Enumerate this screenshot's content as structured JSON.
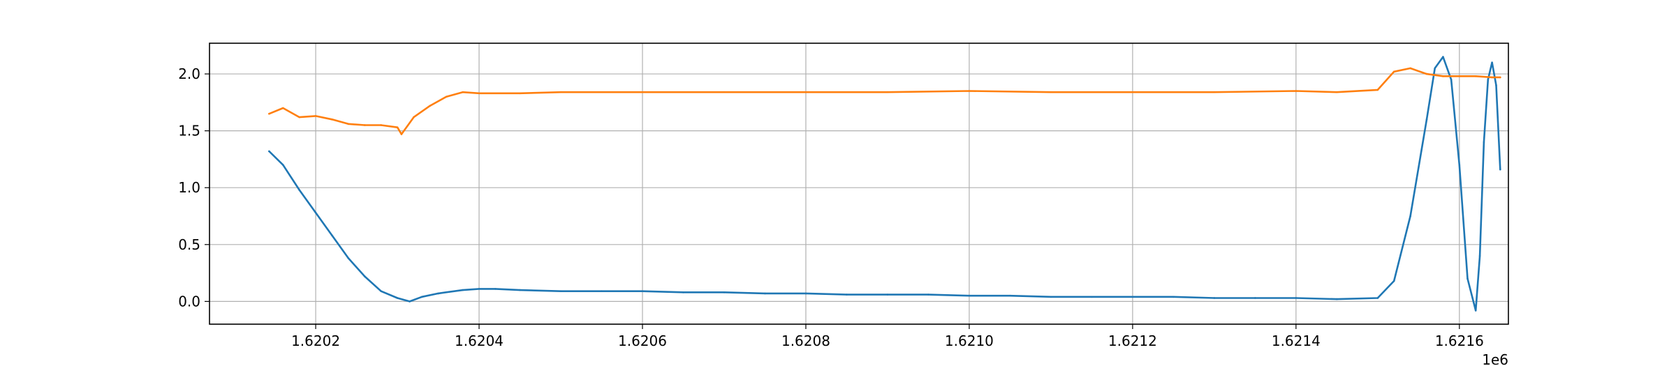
{
  "chart_data": {
    "type": "line",
    "title": "",
    "xlabel": "",
    "ylabel": "",
    "x_offset_label": "1e6",
    "xlim": [
      1.62007,
      1.62166
    ],
    "ylim": [
      -0.2,
      2.27
    ],
    "grid": true,
    "legend": "none",
    "x_ticks": [
      1.6202,
      1.6204,
      1.6206,
      1.6208,
      1.621,
      1.6212,
      1.6214,
      1.6216
    ],
    "x_tick_labels": [
      "1.6202",
      "1.6204",
      "1.6206",
      "1.6208",
      "1.6210",
      "1.6212",
      "1.6214",
      "1.6216"
    ],
    "y_ticks": [
      0.0,
      0.5,
      1.0,
      1.5,
      2.0
    ],
    "y_tick_labels": [
      "0.0",
      "0.5",
      "1.0",
      "1.5",
      "2.0"
    ],
    "series": [
      {
        "color": "#1f77b4",
        "x": [
          1.620143,
          1.62016,
          1.62018,
          1.6202,
          1.62022,
          1.62024,
          1.62026,
          1.62028,
          1.6203,
          1.620315,
          1.62033,
          1.62035,
          1.62038,
          1.6204,
          1.62042,
          1.62045,
          1.6205,
          1.62055,
          1.6206,
          1.62065,
          1.6207,
          1.62075,
          1.6208,
          1.62085,
          1.6209,
          1.62095,
          1.621,
          1.62105,
          1.6211,
          1.62115,
          1.6212,
          1.62125,
          1.6213,
          1.62135,
          1.6214,
          1.62145,
          1.6215,
          1.62152,
          1.62154,
          1.62156,
          1.62157,
          1.62158,
          1.62159,
          1.6216,
          1.62161,
          1.62162,
          1.621625,
          1.62163,
          1.621635,
          1.62164,
          1.621645,
          1.62165
        ],
        "y": [
          1.32,
          1.2,
          0.98,
          0.78,
          0.58,
          0.38,
          0.22,
          0.09,
          0.03,
          0.0,
          0.04,
          0.07,
          0.1,
          0.11,
          0.11,
          0.1,
          0.09,
          0.09,
          0.09,
          0.08,
          0.08,
          0.07,
          0.07,
          0.06,
          0.06,
          0.06,
          0.05,
          0.05,
          0.04,
          0.04,
          0.04,
          0.04,
          0.03,
          0.03,
          0.03,
          0.02,
          0.03,
          0.18,
          0.75,
          1.6,
          2.05,
          2.15,
          1.95,
          1.2,
          0.2,
          -0.08,
          0.4,
          1.4,
          1.95,
          2.1,
          1.9,
          1.16
        ]
      },
      {
        "color": "#ff7f0e",
        "x": [
          1.620143,
          1.62016,
          1.62018,
          1.6202,
          1.62022,
          1.62024,
          1.62026,
          1.62028,
          1.6203,
          1.620305,
          1.62032,
          1.62034,
          1.62036,
          1.62038,
          1.6204,
          1.62045,
          1.6205,
          1.6206,
          1.6207,
          1.6208,
          1.6209,
          1.621,
          1.6211,
          1.6212,
          1.6213,
          1.6214,
          1.62145,
          1.6215,
          1.62152,
          1.62154,
          1.62156,
          1.62158,
          1.6216,
          1.62162,
          1.62164,
          1.62165
        ],
        "y": [
          1.65,
          1.7,
          1.62,
          1.63,
          1.6,
          1.56,
          1.55,
          1.55,
          1.53,
          1.47,
          1.62,
          1.72,
          1.8,
          1.84,
          1.83,
          1.83,
          1.84,
          1.84,
          1.84,
          1.84,
          1.84,
          1.85,
          1.84,
          1.84,
          1.84,
          1.85,
          1.84,
          1.86,
          2.02,
          2.05,
          2.0,
          1.98,
          1.98,
          1.98,
          1.97,
          1.97
        ]
      }
    ]
  }
}
